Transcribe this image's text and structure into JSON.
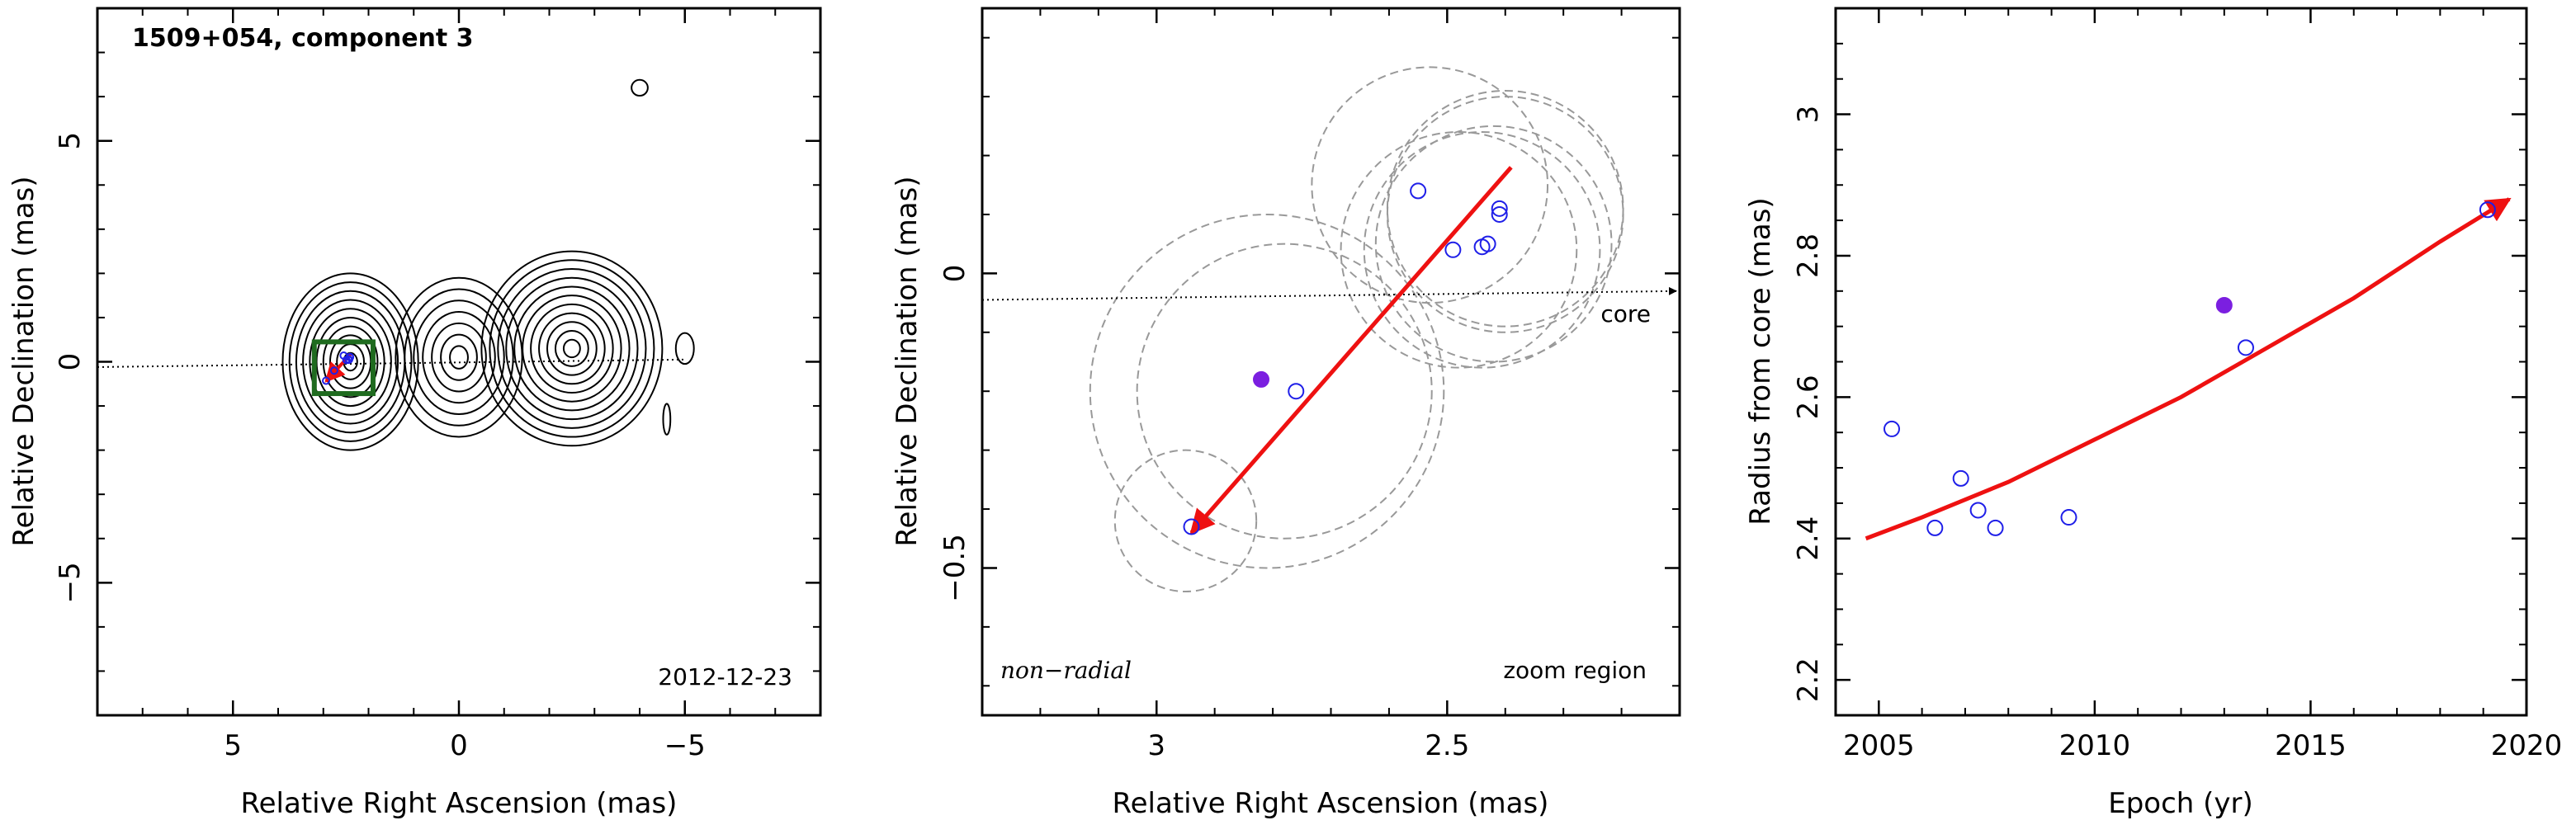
{
  "chart_data": [
    {
      "type": "contour",
      "title": "1509+054, component 3",
      "xlabel": "Relative Right Ascension (mas)",
      "ylabel": "Relative Declination (mas)",
      "xlim": [
        8,
        -8
      ],
      "ylim": [
        -8,
        8
      ],
      "xticks": [
        5,
        0,
        -5
      ],
      "yticks": [
        -5,
        0,
        5
      ],
      "date_label": "2012-12-23",
      "contour_centers": [
        {
          "x": 2.4,
          "y": 0.0,
          "nlevels": 10,
          "rx": 1.5,
          "ry": 2.0
        },
        {
          "x": 0.0,
          "y": 0.1,
          "nlevels": 7,
          "rx": 1.4,
          "ry": 1.8
        },
        {
          "x": -2.5,
          "y": 0.3,
          "nlevels": 11,
          "rx": 2.0,
          "ry": 2.2
        },
        {
          "x": -4.0,
          "y": 6.2,
          "nlevels": 1,
          "rx": 0.18,
          "ry": 0.18
        },
        {
          "x": -5.0,
          "y": 0.3,
          "nlevels": 1,
          "rx": 0.2,
          "ry": 0.35
        },
        {
          "x": -4.6,
          "y": -1.3,
          "nlevels": 1,
          "rx": 0.08,
          "ry": 0.35
        }
      ],
      "zoom_box": {
        "x": [
          3.2,
          1.9
        ],
        "y": [
          -0.72,
          0.45
        ]
      },
      "core_line": {
        "x": [
          8,
          -5
        ],
        "y": [
          -0.12,
          0.05
        ]
      }
    },
    {
      "type": "scatter",
      "annotation_left": "non−radial",
      "annotation_right": "zoom region",
      "core_label": "core",
      "xlabel": "Relative Right Ascension (mas)",
      "ylabel": "Relative Declination (mas)",
      "xlim": [
        3.3,
        2.1
      ],
      "ylim": [
        -0.75,
        0.45
      ],
      "xticks": [
        3,
        2.5
      ],
      "yticks": [
        -0.5,
        0
      ],
      "points_open": [
        {
          "x": 2.55,
          "y": 0.14
        },
        {
          "x": 2.49,
          "y": 0.04
        },
        {
          "x": 2.44,
          "y": 0.045
        },
        {
          "x": 2.43,
          "y": 0.05
        },
        {
          "x": 2.41,
          "y": 0.1
        },
        {
          "x": 2.41,
          "y": 0.11
        },
        {
          "x": 2.76,
          "y": -0.2
        },
        {
          "x": 2.94,
          "y": -0.43
        }
      ],
      "points_filled": [
        {
          "x": 2.82,
          "y": -0.18
        }
      ],
      "circles": [
        {
          "x": 2.53,
          "y": 0.15,
          "r": 0.2
        },
        {
          "x": 2.48,
          "y": 0.04,
          "r": 0.2
        },
        {
          "x": 2.44,
          "y": 0.04,
          "r": 0.2
        },
        {
          "x": 2.42,
          "y": 0.05,
          "r": 0.2
        },
        {
          "x": 2.4,
          "y": 0.1,
          "r": 0.2
        },
        {
          "x": 2.4,
          "y": 0.11,
          "r": 0.2
        },
        {
          "x": 2.78,
          "y": -0.2,
          "r": 0.25
        },
        {
          "x": 2.81,
          "y": -0.2,
          "r": 0.3
        },
        {
          "x": 2.95,
          "y": -0.42,
          "r": 0.12
        }
      ],
      "arrow": {
        "x": [
          2.39,
          2.94
        ],
        "y": [
          0.18,
          -0.44
        ]
      },
      "core_line": {
        "x": [
          3.3,
          2.1
        ],
        "y": [
          -0.045,
          -0.03
        ]
      }
    },
    {
      "type": "scatter",
      "xlabel": "Epoch (yr)",
      "ylabel": "Radius from core (mas)",
      "xlim": [
        2004,
        2020
      ],
      "ylim": [
        2.15,
        3.15
      ],
      "xticks": [
        2005,
        2010,
        2015,
        2020
      ],
      "xtick_labels": [
        "2005",
        "2010",
        "2015",
        "2020"
      ],
      "yticks": [
        2.2,
        2.4,
        2.6,
        2.8,
        3
      ],
      "ytick_labels": [
        "2.2",
        "2.4",
        "2.6",
        "2.8",
        "3"
      ],
      "points_open": [
        {
          "x": 2005.3,
          "y": 2.555
        },
        {
          "x": 2006.3,
          "y": 2.415
        },
        {
          "x": 2006.9,
          "y": 2.485
        },
        {
          "x": 2007.3,
          "y": 2.44
        },
        {
          "x": 2007.7,
          "y": 2.415
        },
        {
          "x": 2009.4,
          "y": 2.43
        },
        {
          "x": 2013.5,
          "y": 2.67
        },
        {
          "x": 2019.1,
          "y": 2.865
        }
      ],
      "points_filled": [
        {
          "x": 2013.0,
          "y": 2.73
        }
      ],
      "fit_curve": {
        "x": [
          2004.7,
          2006,
          2008,
          2010,
          2012,
          2014,
          2016,
          2018,
          2019.6
        ],
        "y": [
          2.4,
          2.43,
          2.48,
          2.54,
          2.6,
          2.67,
          2.74,
          2.82,
          2.88
        ]
      }
    }
  ],
  "colors": {
    "open_points": "#1f1fe8",
    "filled_points": "#7b1fe0",
    "arrow": "#ee1111",
    "zoom_box": "#1f6b1f",
    "circles": "#999999"
  }
}
